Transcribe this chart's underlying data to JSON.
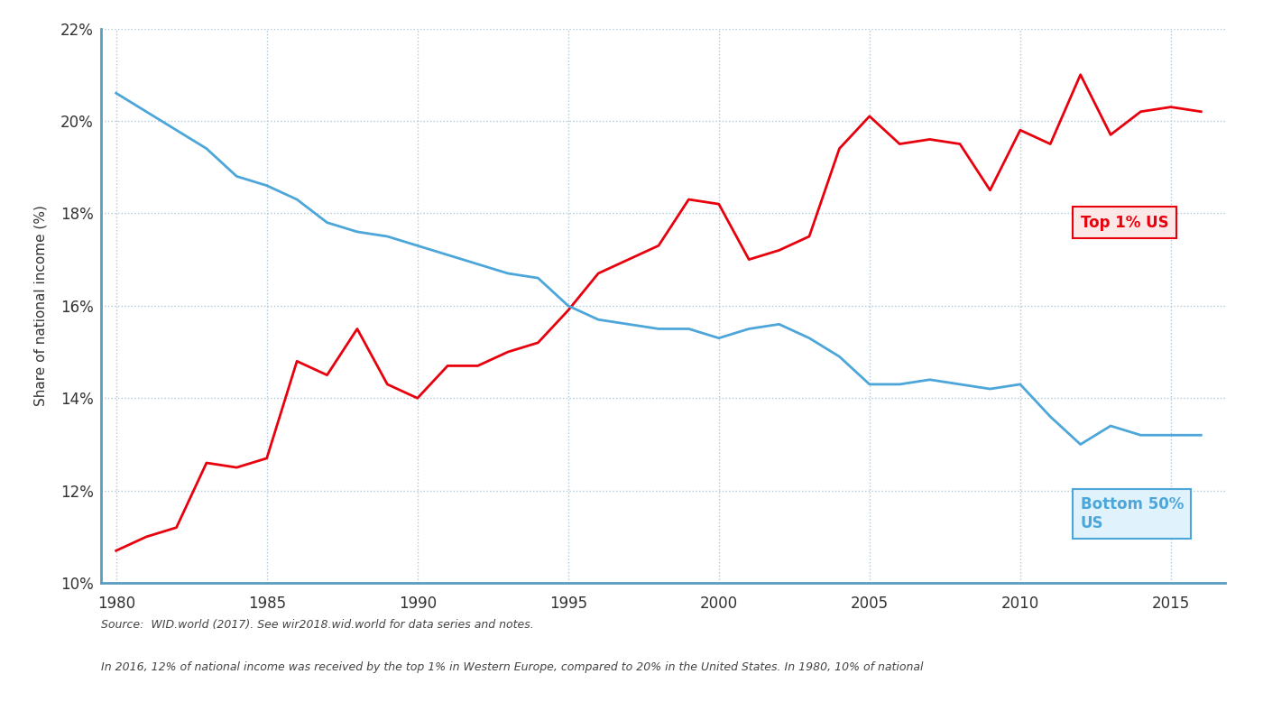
{
  "top1_years": [
    1980,
    1981,
    1982,
    1983,
    1984,
    1985,
    1986,
    1987,
    1988,
    1989,
    1990,
    1991,
    1992,
    1993,
    1994,
    1995,
    1996,
    1997,
    1998,
    1999,
    2000,
    2001,
    2002,
    2003,
    2004,
    2005,
    2006,
    2007,
    2008,
    2009,
    2010,
    2011,
    2012,
    2013,
    2014,
    2015,
    2016
  ],
  "top1_values": [
    10.7,
    11.0,
    11.2,
    12.6,
    12.5,
    12.7,
    14.8,
    14.5,
    15.5,
    14.3,
    14.0,
    14.7,
    14.7,
    15.0,
    15.2,
    15.9,
    16.7,
    17.0,
    17.3,
    18.3,
    18.2,
    17.0,
    17.2,
    17.5,
    19.4,
    20.1,
    19.5,
    19.6,
    19.5,
    18.5,
    19.8,
    19.5,
    21.0,
    19.7,
    20.2,
    20.3,
    20.2
  ],
  "bot50_years": [
    1980,
    1981,
    1982,
    1983,
    1984,
    1985,
    1986,
    1987,
    1988,
    1989,
    1990,
    1991,
    1992,
    1993,
    1994,
    1995,
    1996,
    1997,
    1998,
    1999,
    2000,
    2001,
    2002,
    2003,
    2004,
    2005,
    2006,
    2007,
    2008,
    2009,
    2010,
    2011,
    2012,
    2013,
    2014,
    2015,
    2016
  ],
  "bot50_values": [
    20.6,
    20.2,
    19.8,
    19.4,
    18.8,
    18.6,
    18.3,
    17.8,
    17.6,
    17.5,
    17.3,
    17.1,
    16.9,
    16.7,
    16.6,
    16.0,
    15.7,
    15.6,
    15.5,
    15.5,
    15.3,
    15.5,
    15.6,
    15.3,
    14.9,
    14.3,
    14.3,
    14.4,
    14.3,
    14.2,
    14.3,
    13.6,
    13.0,
    13.4,
    13.2,
    13.2,
    13.2
  ],
  "top1_color": "#e8000d",
  "bot50_color": "#4da6d9",
  "grid_color": "#b0c8d8",
  "axis_color": "#5a9dbf",
  "background_color": "#ffffff",
  "ylabel": "Share of national income (%)",
  "ylim": [
    10,
    22
  ],
  "xlim": [
    1979.5,
    2016.8
  ],
  "yticks": [
    10,
    12,
    14,
    16,
    18,
    20,
    22
  ],
  "xticks": [
    1980,
    1985,
    1990,
    1995,
    2000,
    2005,
    2010,
    2015
  ],
  "top1_label": "Top 1% US",
  "bot50_label": "Bottom 50%\nUS",
  "source_text": "Source:  WID.world (2017). See wir2018.wid.world for data series and notes.",
  "footnote_text": "In 2016, 12% of national income was received by the top 1% in Western Europe, compared to 20% in the United States. In 1980, 10% of national"
}
